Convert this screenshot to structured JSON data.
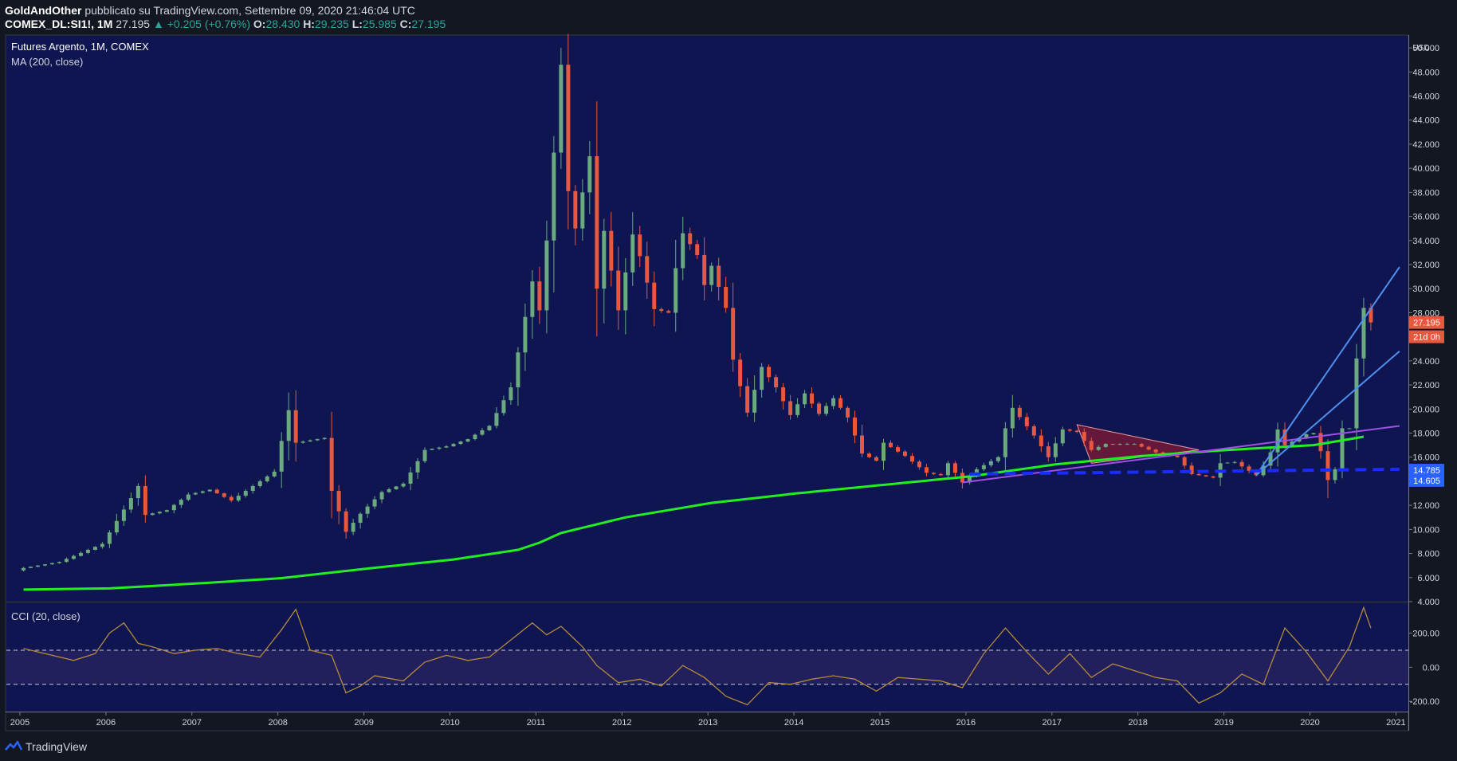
{
  "header": {
    "author": "GoldAndOther",
    "published": "pubblicato su TradingView.com, Settembre 09, 2020 21:46:04 UTC",
    "symbol": "COMEX_DL:SI1!, 1M",
    "last": "27.195",
    "change_arrow": "▲",
    "change": "+0.205 (+0.76%)",
    "o_label": "O:",
    "o_value": "28.430",
    "h_label": "H:",
    "h_value": "29.235",
    "l_label": "L:",
    "l_value": "25.985",
    "c_label": "C:",
    "c_value": "27.195"
  },
  "footer": {
    "brand": "TradingView",
    "logo_icon": "tradingview-logo-icon"
  },
  "colors": {
    "background": "#131722",
    "panel": "#0f1550",
    "up": "#6aaa7e",
    "down": "#e8583f",
    "ma": "#22ee22",
    "cci": "#b58a3e",
    "trend_blue": "#4f8ff0",
    "trend_purple": "#a24ee8",
    "support_dash": "#1a2cff",
    "triangle": "#8b1a32",
    "price_tag": "#e8583f",
    "support_tag": "#2962ff"
  },
  "chart_data": [
    {
      "type": "candlestick",
      "title": "Futures Argento, 1M, COMEX",
      "indicator": "MA (200, close)",
      "currency": "USD",
      "ylim": [
        4,
        51
      ],
      "y_ticks": [
        "52.000",
        "50.000",
        "48.000",
        "46.000",
        "44.000",
        "42.000",
        "40.000",
        "38.000",
        "36.000",
        "34.000",
        "32.000",
        "30.000",
        "28.000",
        "26.000",
        "24.000",
        "22.000",
        "20.000",
        "18.000",
        "16.000",
        "14.000",
        "12.000",
        "10.000",
        "8.000",
        "6.000",
        "4.000"
      ],
      "x_ticks": [
        "2005",
        "2006",
        "2007",
        "2008",
        "2009",
        "2010",
        "2011",
        "2012",
        "2013",
        "2014",
        "2015",
        "2016",
        "2017",
        "2018",
        "2019",
        "2020",
        "2021"
      ],
      "price_labels": {
        "last": "27.195",
        "countdown": "21d 0h",
        "support_upper": "14.785",
        "support_lower": "14.605"
      },
      "close_anchors": [
        [
          "2005-01",
          6.8
        ],
        [
          "2005-06",
          7.3
        ],
        [
          "2005-12",
          8.8
        ],
        [
          "2006-04",
          12.6
        ],
        [
          "2006-05",
          13.6
        ],
        [
          "2006-06",
          11.2
        ],
        [
          "2006-09",
          11.6
        ],
        [
          "2006-12",
          12.9
        ],
        [
          "2007-03",
          13.3
        ],
        [
          "2007-06",
          12.4
        ],
        [
          "2007-09",
          13.6
        ],
        [
          "2007-12",
          14.8
        ],
        [
          "2008-02",
          19.9
        ],
        [
          "2008-03",
          17.2
        ],
        [
          "2008-07",
          17.6
        ],
        [
          "2008-08",
          13.2
        ],
        [
          "2008-10",
          9.8
        ],
        [
          "2008-12",
          11.3
        ],
        [
          "2009-03",
          13.1
        ],
        [
          "2009-06",
          13.8
        ],
        [
          "2009-09",
          16.6
        ],
        [
          "2009-12",
          16.9
        ],
        [
          "2010-03",
          17.5
        ],
        [
          "2010-06",
          18.6
        ],
        [
          "2010-09",
          21.8
        ],
        [
          "2010-10",
          24.7
        ],
        [
          "2010-12",
          30.6
        ],
        [
          "2011-01",
          28.2
        ],
        [
          "2011-02",
          34.0
        ],
        [
          "2011-04",
          48.6
        ],
        [
          "2011-05",
          38.1
        ],
        [
          "2011-06",
          35.0
        ],
        [
          "2011-08",
          41.0
        ],
        [
          "2011-09",
          30.0
        ],
        [
          "2011-10",
          34.8
        ],
        [
          "2011-12",
          28.2
        ],
        [
          "2012-02",
          34.5
        ],
        [
          "2012-03",
          32.7
        ],
        [
          "2012-05",
          28.3
        ],
        [
          "2012-07",
          28.0
        ],
        [
          "2012-08",
          31.7
        ],
        [
          "2012-09",
          34.6
        ],
        [
          "2012-11",
          32.8
        ],
        [
          "2012-12",
          30.3
        ],
        [
          "2013-01",
          31.9
        ],
        [
          "2013-03",
          28.4
        ],
        [
          "2013-04",
          24.1
        ],
        [
          "2013-06",
          19.7
        ],
        [
          "2013-08",
          23.5
        ],
        [
          "2013-10",
          21.8
        ],
        [
          "2013-12",
          19.5
        ],
        [
          "2014-02",
          21.3
        ],
        [
          "2014-04",
          19.6
        ],
        [
          "2014-06",
          20.9
        ],
        [
          "2014-08",
          19.3
        ],
        [
          "2014-10",
          16.3
        ],
        [
          "2014-12",
          15.7
        ],
        [
          "2015-01",
          17.2
        ],
        [
          "2015-04",
          16.1
        ],
        [
          "2015-07",
          14.7
        ],
        [
          "2015-09",
          14.5
        ],
        [
          "2015-10",
          15.5
        ],
        [
          "2015-12",
          13.9
        ],
        [
          "2016-02",
          15.0
        ],
        [
          "2016-05",
          16.0
        ],
        [
          "2016-06",
          18.4
        ],
        [
          "2016-07",
          20.1
        ],
        [
          "2016-10",
          17.8
        ],
        [
          "2016-12",
          16.0
        ],
        [
          "2017-02",
          18.3
        ],
        [
          "2017-04",
          18.1
        ],
        [
          "2017-06",
          16.6
        ],
        [
          "2017-08",
          17.1
        ],
        [
          "2017-12",
          17.1
        ],
        [
          "2018-03",
          16.4
        ],
        [
          "2018-06",
          16.0
        ],
        [
          "2018-08",
          14.6
        ],
        [
          "2018-11",
          14.3
        ],
        [
          "2018-12",
          15.5
        ],
        [
          "2019-02",
          15.6
        ],
        [
          "2019-05",
          14.5
        ],
        [
          "2019-06",
          15.3
        ],
        [
          "2019-07",
          16.4
        ],
        [
          "2019-08",
          18.3
        ],
        [
          "2019-09",
          17.0
        ],
        [
          "2019-12",
          17.9
        ],
        [
          "2020-01",
          18.0
        ],
        [
          "2020-02",
          16.5
        ],
        [
          "2020-03",
          14.1
        ],
        [
          "2020-04",
          15.0
        ],
        [
          "2020-05",
          18.4
        ],
        [
          "2020-06",
          18.4
        ],
        [
          "2020-07",
          24.2
        ],
        [
          "2020-08",
          28.4
        ],
        [
          "2020-09",
          27.195
        ]
      ],
      "ma200_anchors": [
        [
          "2005-01",
          5.0
        ],
        [
          "2006-01",
          5.1
        ],
        [
          "2007-01",
          5.5
        ],
        [
          "2008-01",
          5.95
        ],
        [
          "2009-01",
          6.75
        ],
        [
          "2010-01",
          7.5
        ],
        [
          "2010-10",
          8.3
        ],
        [
          "2011-01",
          8.9
        ],
        [
          "2011-04",
          9.7
        ],
        [
          "2012-01",
          11.0
        ],
        [
          "2013-01",
          12.2
        ],
        [
          "2014-01",
          13.0
        ],
        [
          "2015-01",
          13.7
        ],
        [
          "2016-01",
          14.4
        ],
        [
          "2017-01",
          15.4
        ],
        [
          "2018-01",
          16.1
        ],
        [
          "2019-01",
          16.6
        ],
        [
          "2020-01",
          17.0
        ],
        [
          "2020-08",
          17.7
        ]
      ]
    },
    {
      "type": "line",
      "title": "CCI (20, close)",
      "ylim": [
        -260,
        380
      ],
      "y_ticks": [
        "200.00",
        "0.00",
        "-200.00"
      ],
      "bands": [
        100,
        -100
      ],
      "anchors": [
        [
          "2005-01",
          110
        ],
        [
          "2005-04",
          80
        ],
        [
          "2005-08",
          40
        ],
        [
          "2005-11",
          80
        ],
        [
          "2006-01",
          200
        ],
        [
          "2006-03",
          260
        ],
        [
          "2006-05",
          140
        ],
        [
          "2006-07",
          120
        ],
        [
          "2006-10",
          80
        ],
        [
          "2007-01",
          100
        ],
        [
          "2007-04",
          110
        ],
        [
          "2007-07",
          80
        ],
        [
          "2007-10",
          60
        ],
        [
          "2008-01",
          220
        ],
        [
          "2008-03",
          340
        ],
        [
          "2008-05",
          100
        ],
        [
          "2008-08",
          70
        ],
        [
          "2008-10",
          -150
        ],
        [
          "2008-12",
          -110
        ],
        [
          "2009-02",
          -50
        ],
        [
          "2009-06",
          -80
        ],
        [
          "2009-09",
          30
        ],
        [
          "2009-12",
          70
        ],
        [
          "2010-03",
          40
        ],
        [
          "2010-06",
          60
        ],
        [
          "2010-09",
          160
        ],
        [
          "2010-12",
          260
        ],
        [
          "2011-02",
          190
        ],
        [
          "2011-04",
          240
        ],
        [
          "2011-07",
          120
        ],
        [
          "2011-09",
          10
        ],
        [
          "2011-12",
          -90
        ],
        [
          "2012-03",
          -70
        ],
        [
          "2012-06",
          -110
        ],
        [
          "2012-09",
          10
        ],
        [
          "2012-12",
          -60
        ],
        [
          "2013-03",
          -170
        ],
        [
          "2013-06",
          -220
        ],
        [
          "2013-09",
          -90
        ],
        [
          "2013-12",
          -100
        ],
        [
          "2014-03",
          -70
        ],
        [
          "2014-06",
          -50
        ],
        [
          "2014-09",
          -70
        ],
        [
          "2014-12",
          -140
        ],
        [
          "2015-03",
          -60
        ],
        [
          "2015-06",
          -70
        ],
        [
          "2015-09",
          -80
        ],
        [
          "2015-12",
          -120
        ],
        [
          "2016-03",
          80
        ],
        [
          "2016-06",
          230
        ],
        [
          "2016-09",
          90
        ],
        [
          "2016-12",
          -40
        ],
        [
          "2017-03",
          80
        ],
        [
          "2017-06",
          -60
        ],
        [
          "2017-09",
          20
        ],
        [
          "2017-12",
          -20
        ],
        [
          "2018-03",
          -60
        ],
        [
          "2018-06",
          -80
        ],
        [
          "2018-09",
          -210
        ],
        [
          "2018-12",
          -150
        ],
        [
          "2019-03",
          -40
        ],
        [
          "2019-06",
          -100
        ],
        [
          "2019-09",
          230
        ],
        [
          "2019-12",
          90
        ],
        [
          "2020-03",
          -80
        ],
        [
          "2020-06",
          120
        ],
        [
          "2020-08",
          350
        ],
        [
          "2020-09",
          230
        ]
      ]
    }
  ]
}
